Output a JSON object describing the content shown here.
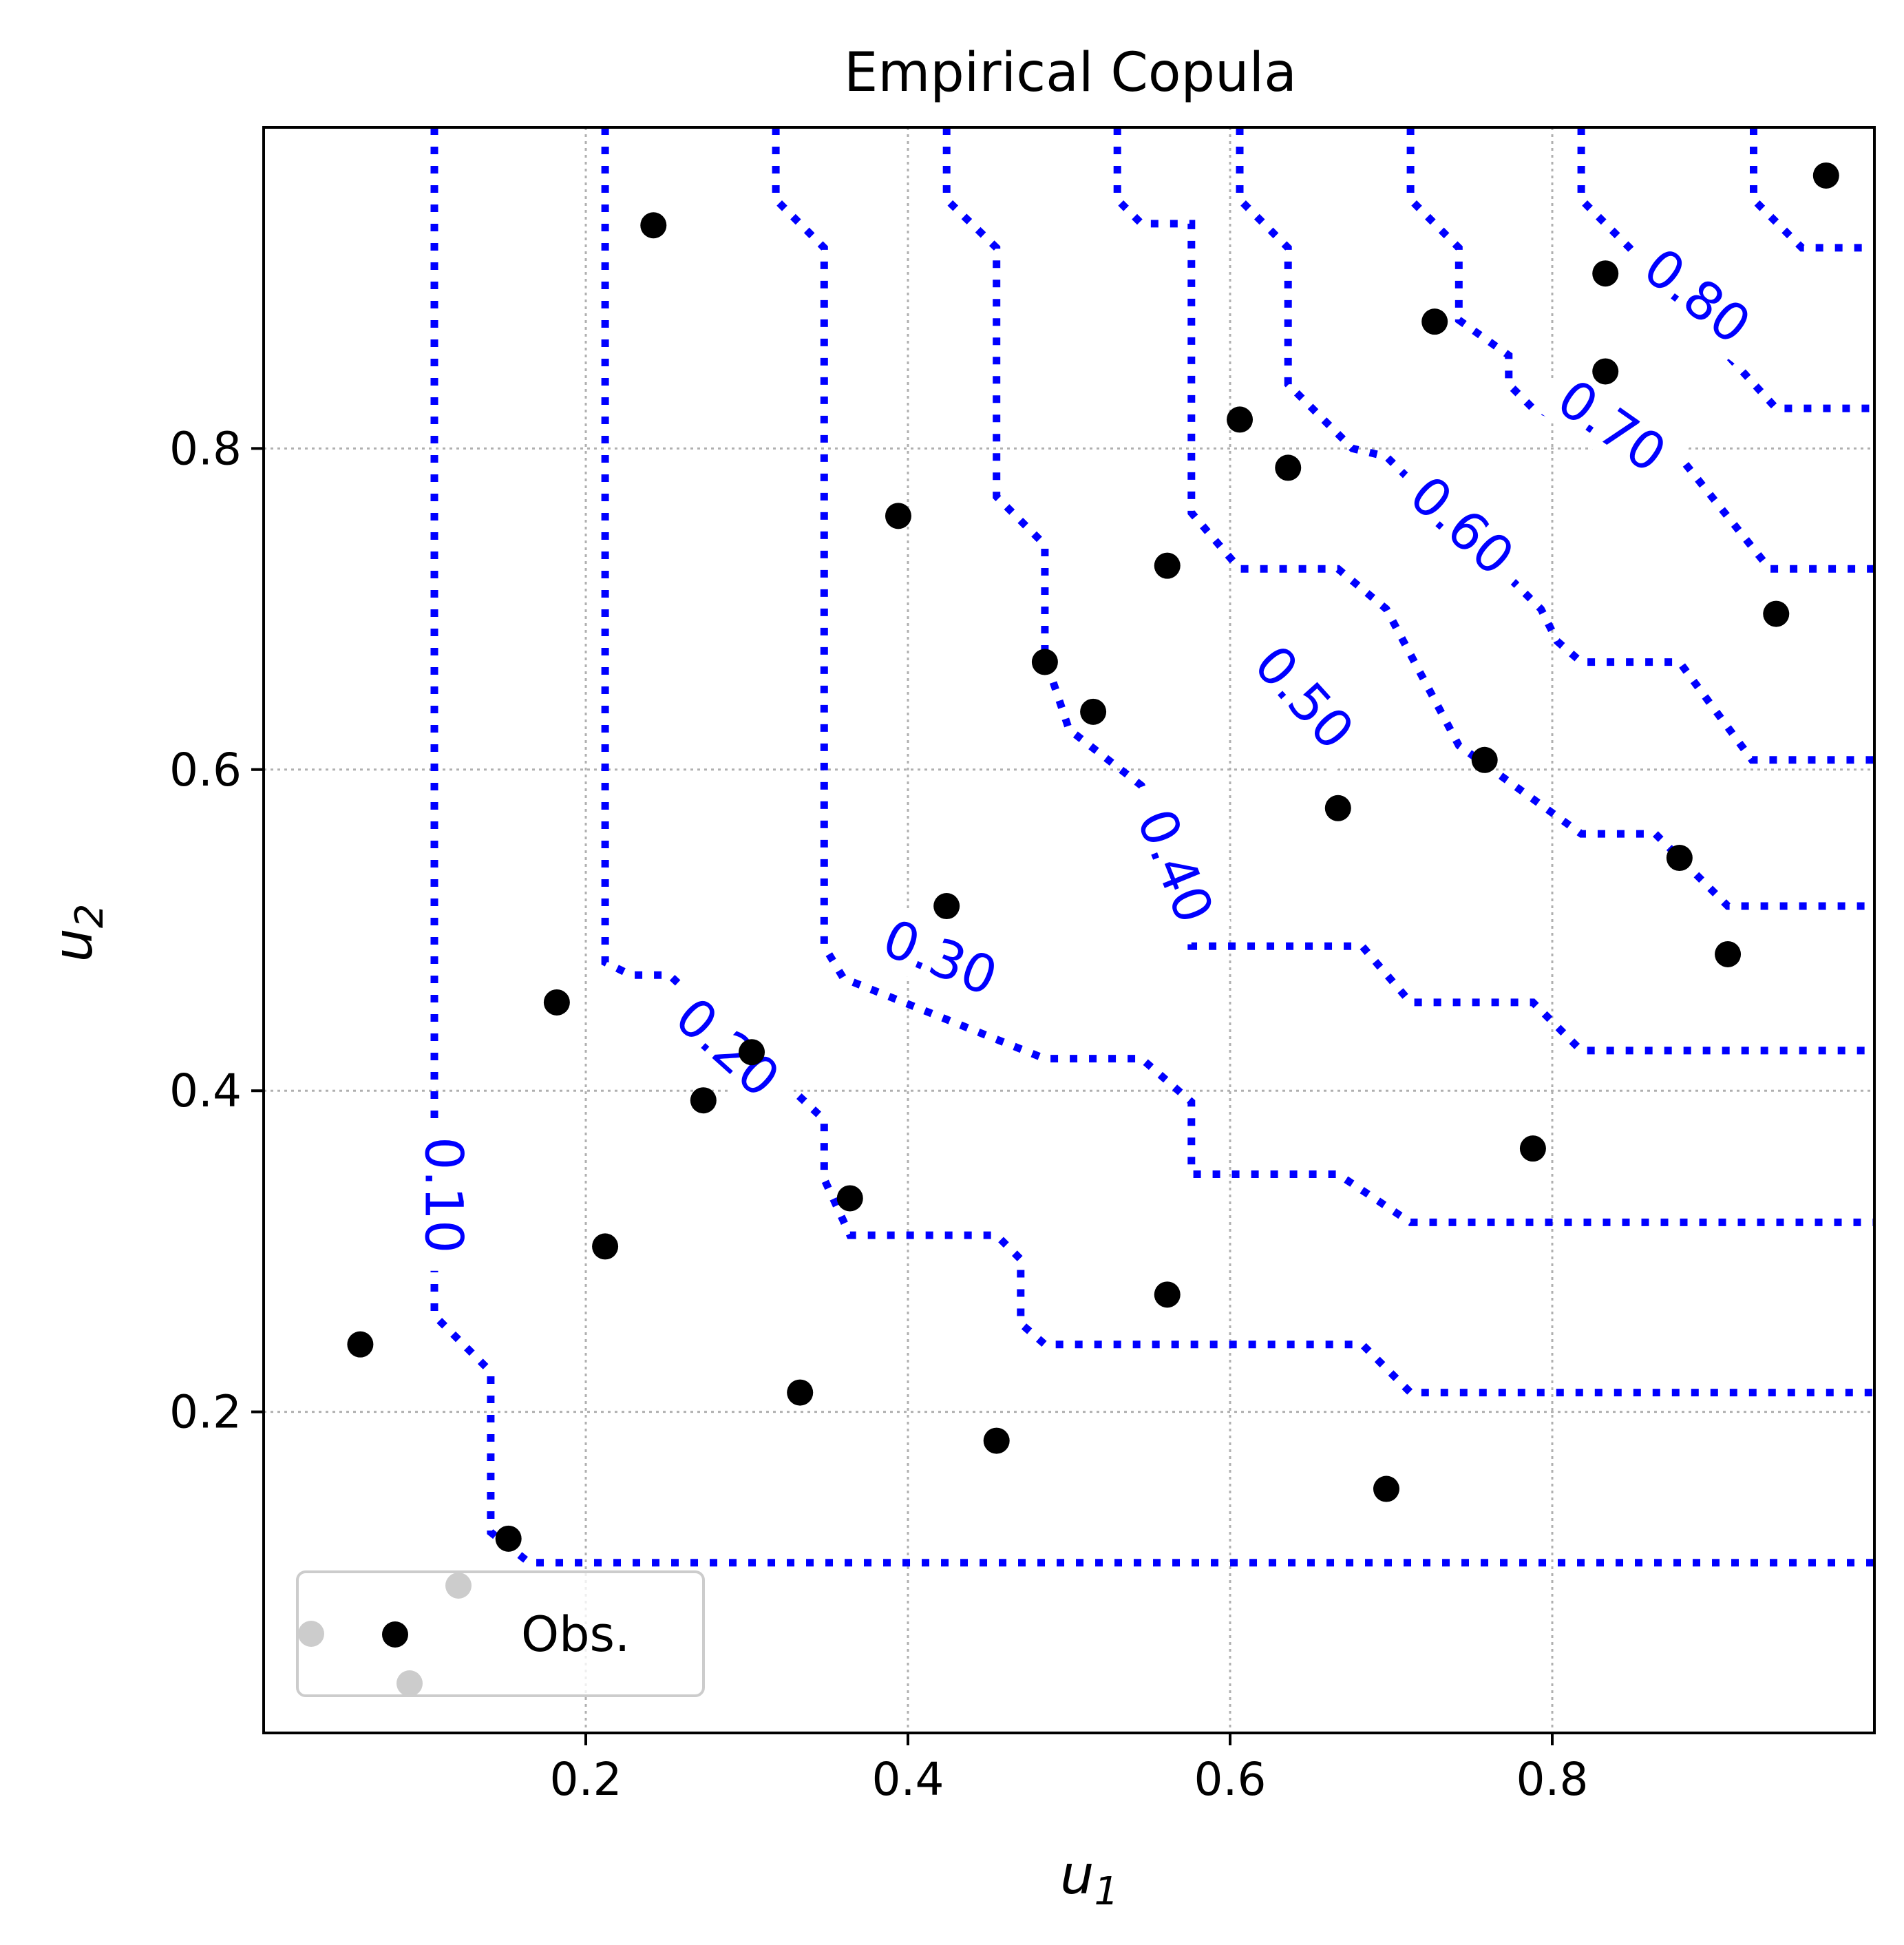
{
  "chart_data": {
    "type": "scatter",
    "title": "Empirical Copula",
    "xlabel": "u",
    "xlabel_sub": "1",
    "ylabel": "u",
    "ylabel_sub": "2",
    "xlim": [
      0.0,
      1.0
    ],
    "ylim": [
      0.0,
      1.0
    ],
    "xticks": [
      0.2,
      0.4,
      0.6,
      0.8
    ],
    "yticks": [
      0.2,
      0.4,
      0.6,
      0.8
    ],
    "xtick_labels": [
      "0.2",
      "0.4",
      "0.6",
      "0.8"
    ],
    "ytick_labels": [
      "0.2",
      "0.4",
      "0.6",
      "0.8"
    ],
    "grid": true,
    "legend": {
      "label": "Obs.",
      "placement": "lower-left"
    },
    "colors": {
      "points": "#000000",
      "contours": "#0000ff",
      "grid": "#b0b0b0",
      "legend_ghost": "#cccccc"
    },
    "series": [
      {
        "name": "Obs.",
        "points": [
          [
            0.06,
            0.242
          ],
          [
            0.152,
            0.121
          ],
          [
            0.182,
            0.455
          ],
          [
            0.212,
            0.303
          ],
          [
            0.242,
            0.939
          ],
          [
            0.273,
            0.394
          ],
          [
            0.303,
            0.424
          ],
          [
            0.333,
            0.212
          ],
          [
            0.364,
            0.333
          ],
          [
            0.394,
            0.758
          ],
          [
            0.424,
            0.515
          ],
          [
            0.455,
            0.182
          ],
          [
            0.485,
            0.667
          ],
          [
            0.515,
            0.636
          ],
          [
            0.561,
            0.727
          ],
          [
            0.561,
            0.273
          ],
          [
            0.606,
            0.818
          ],
          [
            0.636,
            0.788
          ],
          [
            0.667,
            0.576
          ],
          [
            0.697,
            0.152
          ],
          [
            0.727,
            0.879
          ],
          [
            0.758,
            0.606
          ],
          [
            0.788,
            0.364
          ],
          [
            0.833,
            0.909
          ],
          [
            0.833,
            0.848
          ],
          [
            0.879,
            0.545
          ],
          [
            0.909,
            0.485
          ],
          [
            0.939,
            0.697
          ],
          [
            0.97,
            0.97
          ]
        ]
      }
    ],
    "contours": [
      {
        "level": "0.10",
        "label_at": [
          0.112,
          0.335
        ],
        "label_rotation": 90,
        "path": [
          [
            0.106,
            1.0
          ],
          [
            0.106,
            0.4
          ],
          [
            0.106,
            0.26
          ],
          [
            0.141,
            0.225
          ],
          [
            0.141,
            0.125
          ],
          [
            0.165,
            0.106
          ],
          [
            1.0,
            0.106
          ]
        ]
      },
      {
        "level": "0.20",
        "label_at": [
          0.288,
          0.427
        ],
        "label_rotation": 42,
        "path": [
          [
            0.212,
            1.0
          ],
          [
            0.212,
            0.48
          ],
          [
            0.228,
            0.472
          ],
          [
            0.252,
            0.472
          ],
          [
            0.27,
            0.455
          ],
          [
            0.348,
            0.382
          ],
          [
            0.348,
            0.345
          ],
          [
            0.364,
            0.31
          ],
          [
            0.455,
            0.31
          ],
          [
            0.47,
            0.295
          ],
          [
            0.47,
            0.255
          ],
          [
            0.485,
            0.242
          ],
          [
            0.682,
            0.242
          ],
          [
            0.712,
            0.212
          ],
          [
            1.0,
            0.212
          ]
        ]
      },
      {
        "level": "0.30",
        "label_at": [
          0.42,
          0.483
        ],
        "label_rotation": 22,
        "path": [
          [
            0.318,
            1.0
          ],
          [
            0.318,
            0.955
          ],
          [
            0.348,
            0.925
          ],
          [
            0.348,
            0.49
          ],
          [
            0.36,
            0.47
          ],
          [
            0.485,
            0.42
          ],
          [
            0.545,
            0.42
          ],
          [
            0.576,
            0.393
          ],
          [
            0.576,
            0.348
          ],
          [
            0.667,
            0.348
          ],
          [
            0.712,
            0.318
          ],
          [
            1.0,
            0.318
          ]
        ]
      },
      {
        "level": "0.40",
        "label_at": [
          0.566,
          0.54
        ],
        "label_rotation": 68,
        "path": [
          [
            0.424,
            1.0
          ],
          [
            0.424,
            0.955
          ],
          [
            0.455,
            0.925
          ],
          [
            0.455,
            0.77
          ],
          [
            0.485,
            0.74
          ],
          [
            0.485,
            0.67
          ],
          [
            0.5,
            0.625
          ],
          [
            0.545,
            0.59
          ],
          [
            0.576,
            0.5
          ],
          [
            0.576,
            0.49
          ],
          [
            0.682,
            0.49
          ],
          [
            0.712,
            0.455
          ],
          [
            0.788,
            0.455
          ],
          [
            0.818,
            0.425
          ],
          [
            1.0,
            0.425
          ]
        ]
      },
      {
        "level": "0.50",
        "label_at": [
          0.646,
          0.645
        ],
        "label_rotation": 48,
        "path": [
          [
            0.53,
            1.0
          ],
          [
            0.53,
            0.955
          ],
          [
            0.545,
            0.94
          ],
          [
            0.576,
            0.94
          ],
          [
            0.576,
            0.76
          ],
          [
            0.606,
            0.725
          ],
          [
            0.667,
            0.725
          ],
          [
            0.697,
            0.7
          ],
          [
            0.742,
            0.615
          ],
          [
            0.818,
            0.56
          ],
          [
            0.864,
            0.56
          ],
          [
            0.909,
            0.515
          ],
          [
            1.0,
            0.515
          ]
        ]
      },
      {
        "level": "0.60",
        "label_at": [
          0.744,
          0.752
        ],
        "label_rotation": 42,
        "path": [
          [
            0.606,
            1.0
          ],
          [
            0.606,
            0.955
          ],
          [
            0.636,
            0.925
          ],
          [
            0.636,
            0.84
          ],
          [
            0.676,
            0.8
          ],
          [
            0.697,
            0.795
          ],
          [
            0.793,
            0.7
          ],
          [
            0.803,
            0.68
          ],
          [
            0.818,
            0.667
          ],
          [
            0.879,
            0.667
          ],
          [
            0.924,
            0.606
          ],
          [
            1.0,
            0.606
          ]
        ]
      },
      {
        "level": "0.70",
        "label_at": [
          0.837,
          0.814
        ],
        "label_rotation": 35,
        "path": [
          [
            0.712,
            1.0
          ],
          [
            0.712,
            0.955
          ],
          [
            0.742,
            0.925
          ],
          [
            0.742,
            0.88
          ],
          [
            0.773,
            0.858
          ],
          [
            0.773,
            0.84
          ],
          [
            0.788,
            0.825
          ],
          [
            0.879,
            0.795
          ],
          [
            0.935,
            0.725
          ],
          [
            1.0,
            0.725
          ]
        ]
      },
      {
        "level": "0.80",
        "label_at": [
          0.89,
          0.895
        ],
        "label_rotation": 38,
        "path": [
          [
            0.818,
            1.0
          ],
          [
            0.818,
            0.955
          ],
          [
            0.848,
            0.925
          ],
          [
            0.939,
            0.825
          ],
          [
            1.0,
            0.825
          ]
        ]
      },
      {
        "level": "",
        "path": [
          [
            0.925,
            1.0
          ],
          [
            0.925,
            0.955
          ],
          [
            0.955,
            0.925
          ],
          [
            1.0,
            0.925
          ]
        ]
      }
    ]
  }
}
